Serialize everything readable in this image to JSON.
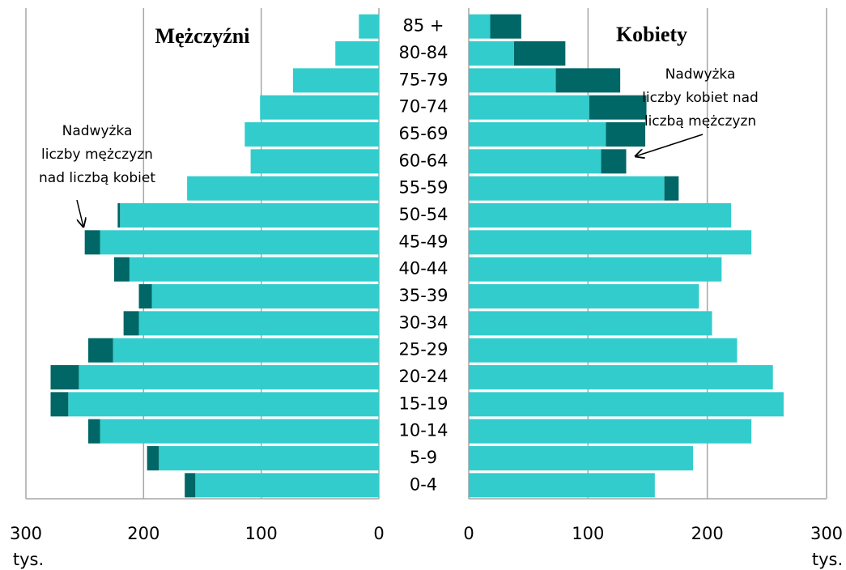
{
  "chart_data": [
    {
      "type": "bar",
      "orientation": "horizontal",
      "x_reversed": true,
      "title": "Mężczyźni",
      "categories": [
        "0-4",
        "5-9",
        "10-14",
        "15-19",
        "20-24",
        "25-29",
        "30-34",
        "35-39",
        "40-44",
        "45-49",
        "50-54",
        "55-59",
        "60-64",
        "65-69",
        "70-74",
        "75-79",
        "80-84",
        "85 +"
      ],
      "series": [
        {
          "color": "#33cccc",
          "values": [
            156,
            187,
            237,
            264,
            255,
            226,
            204,
            193,
            212,
            237,
            220,
            163,
            109,
            114,
            101,
            73,
            37,
            17
          ]
        },
        {
          "color": "#006666",
          "values": [
            9,
            10,
            10,
            15,
            24,
            21,
            13,
            11,
            13,
            13,
            2,
            0,
            0,
            0,
            0,
            0,
            0,
            0
          ]
        }
      ],
      "xlim": [
        0,
        300
      ],
      "xticks": [
        0,
        100,
        200,
        300
      ],
      "xlabel": "tys.",
      "grid": true,
      "annotation": [
        "Nadwyżka",
        "liczby mężczyzn",
        "nad liczbą kobiet"
      ]
    },
    {
      "type": "bar",
      "orientation": "horizontal",
      "x_reversed": false,
      "title": "Kobiety",
      "series": [
        {
          "color": "#33cccc",
          "values": [
            156,
            188,
            237,
            264,
            255,
            225,
            204,
            193,
            212,
            237,
            220,
            164,
            111,
            115,
            101,
            73,
            38,
            18
          ]
        },
        {
          "color": "#006666",
          "values": [
            0,
            0,
            0,
            0,
            0,
            0,
            0,
            0,
            0,
            0,
            0,
            12,
            21,
            33,
            48,
            54,
            43,
            26
          ]
        }
      ],
      "xlim": [
        0,
        300
      ],
      "xticks": [
        0,
        100,
        200,
        300
      ],
      "xlabel": "tys.",
      "grid": true,
      "annotation": [
        "Nadwyżka",
        "liczby kobiet nad",
        "liczbą mężczyzn"
      ]
    }
  ]
}
